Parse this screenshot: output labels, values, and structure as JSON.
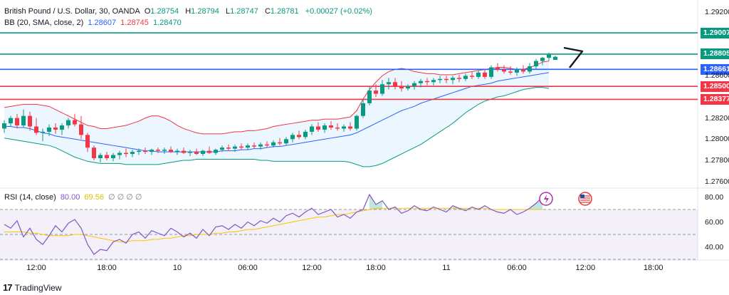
{
  "legend": {
    "symbol": "British Pound / U.S. Dollar, 30, OANDA",
    "o_label": "O",
    "o": "1.28754",
    "h_label": "H",
    "h": "1.28794",
    "l_label": "L",
    "l": "1.28747",
    "c_label": "C",
    "c": "1.28781",
    "change": "+0.00027 (+0.02%)",
    "bb_label": "BB (20, SMA, close, 2)",
    "bb_basis": "1.28607",
    "bb_upper": "1.28745",
    "bb_lower": "1.28470",
    "rsi_label": "RSI (14, close)",
    "rsi_value": "80.00",
    "rsi_ma": "69.56",
    "rsi_empty": "∅ ∅ ∅ ∅"
  },
  "price_labels": [
    "1.29007",
    "1.28805",
    "1.28661",
    "1.28500",
    "1.28377"
  ],
  "price_label_colors": [
    "#089981",
    "#089981",
    "#2962ff",
    "#f23645",
    "#f23645"
  ],
  "price_axis": [
    "1.29200",
    "1.28600",
    "1.28200",
    "1.28000",
    "1.27800",
    "1.27600"
  ],
  "rsi_axis": [
    "80.00",
    "60.00",
    "40.00"
  ],
  "time_axis": [
    "12:00",
    "18:00",
    "10",
    "06:00",
    "12:00",
    "18:00",
    "11",
    "06:00",
    "12:00",
    "18:00"
  ],
  "brand": {
    "name": "TradingView",
    "logo": "17"
  },
  "colors": {
    "up": "#089981",
    "down": "#f23645",
    "basis": "#2962ff",
    "band": "#f23645",
    "lower": "#089981",
    "rsi": "#7e57c2",
    "rsi_ma": "#f7c600"
  },
  "chart_data": [
    {
      "type": "candlestick",
      "title": "British Pound / U.S. Dollar, 30, OANDA",
      "ylim": [
        1.2755,
        1.2925
      ],
      "horizontal_lines": [
        {
          "value": 1.29007,
          "color": "#089981"
        },
        {
          "value": 1.28805,
          "color": "#089981"
        },
        {
          "value": 1.28661,
          "color": "#2962ff"
        },
        {
          "value": 1.285,
          "color": "#f23645"
        },
        {
          "value": 1.28377,
          "color": "#f23645"
        }
      ],
      "ohlc": [
        [
          1.281,
          1.2818,
          1.2806,
          1.2815
        ],
        [
          1.2815,
          1.2822,
          1.2812,
          1.282
        ],
        [
          1.282,
          1.2824,
          1.281,
          1.2813
        ],
        [
          1.2813,
          1.2828,
          1.2811,
          1.2822
        ],
        [
          1.2822,
          1.2826,
          1.2808,
          1.2812
        ],
        [
          1.2812,
          1.282,
          1.2804,
          1.2806
        ],
        [
          1.2806,
          1.281,
          1.2798,
          1.2807
        ],
        [
          1.2807,
          1.2814,
          1.2803,
          1.2811
        ],
        [
          1.2811,
          1.2815,
          1.2805,
          1.2809
        ],
        [
          1.2809,
          1.2815,
          1.2804,
          1.2813
        ],
        [
          1.2813,
          1.282,
          1.281,
          1.2818
        ],
        [
          1.2818,
          1.2824,
          1.2812,
          1.2814
        ],
        [
          1.2814,
          1.2822,
          1.28,
          1.2804
        ],
        [
          1.2804,
          1.2806,
          1.2788,
          1.2792
        ],
        [
          1.2792,
          1.2794,
          1.278,
          1.2782
        ],
        [
          1.2782,
          1.2787,
          1.2778,
          1.2785
        ],
        [
          1.2785,
          1.2788,
          1.278,
          1.2782
        ],
        [
          1.2782,
          1.2787,
          1.2779,
          1.2785
        ],
        [
          1.2785,
          1.2789,
          1.2781,
          1.2787
        ],
        [
          1.2787,
          1.2791,
          1.2783,
          1.2786
        ],
        [
          1.2786,
          1.279,
          1.2783,
          1.2788
        ],
        [
          1.2788,
          1.2791,
          1.2785,
          1.2789
        ],
        [
          1.2789,
          1.2792,
          1.2786,
          1.2788
        ],
        [
          1.2788,
          1.2791,
          1.2785,
          1.279
        ],
        [
          1.279,
          1.2792,
          1.2787,
          1.2789
        ],
        [
          1.2789,
          1.2792,
          1.2786,
          1.279
        ],
        [
          1.279,
          1.2793,
          1.2787,
          1.2788
        ],
        [
          1.2788,
          1.2791,
          1.2785,
          1.2789
        ],
        [
          1.2789,
          1.2792,
          1.2786,
          1.2787
        ],
        [
          1.2787,
          1.279,
          1.2784,
          1.2788
        ],
        [
          1.2788,
          1.2791,
          1.2785,
          1.2786
        ],
        [
          1.2786,
          1.279,
          1.2784,
          1.2789
        ],
        [
          1.2789,
          1.2793,
          1.2786,
          1.2787
        ],
        [
          1.2787,
          1.2791,
          1.2785,
          1.279
        ],
        [
          1.279,
          1.2794,
          1.2788,
          1.2792
        ],
        [
          1.2792,
          1.2795,
          1.2789,
          1.2791
        ],
        [
          1.2791,
          1.2795,
          1.2788,
          1.2793
        ],
        [
          1.2793,
          1.2796,
          1.279,
          1.2792
        ],
        [
          1.2792,
          1.2796,
          1.279,
          1.2794
        ],
        [
          1.2794,
          1.2797,
          1.2791,
          1.2793
        ],
        [
          1.2793,
          1.2797,
          1.279,
          1.2795
        ],
        [
          1.2795,
          1.2798,
          1.2792,
          1.2794
        ],
        [
          1.2794,
          1.2799,
          1.2792,
          1.2797
        ],
        [
          1.2797,
          1.2801,
          1.2794,
          1.2796
        ],
        [
          1.2796,
          1.2802,
          1.2794,
          1.28
        ],
        [
          1.28,
          1.2806,
          1.2797,
          1.2804
        ],
        [
          1.2804,
          1.2808,
          1.28,
          1.2802
        ],
        [
          1.2802,
          1.2809,
          1.28,
          1.2807
        ],
        [
          1.2807,
          1.2814,
          1.2804,
          1.2812
        ],
        [
          1.2812,
          1.2816,
          1.2807,
          1.2809
        ],
        [
          1.2809,
          1.2815,
          1.2806,
          1.2813
        ],
        [
          1.2813,
          1.2817,
          1.2809,
          1.2811
        ],
        [
          1.2811,
          1.2815,
          1.2808,
          1.281
        ],
        [
          1.281,
          1.2814,
          1.2807,
          1.2812
        ],
        [
          1.2812,
          1.2816,
          1.2808,
          1.281
        ],
        [
          1.281,
          1.2823,
          1.2808,
          1.2822
        ],
        [
          1.2822,
          1.2838,
          1.282,
          1.2834
        ],
        [
          1.2834,
          1.285,
          1.2832,
          1.2846
        ],
        [
          1.2846,
          1.2852,
          1.284,
          1.2843
        ],
        [
          1.2843,
          1.2856,
          1.2841,
          1.2852
        ],
        [
          1.2852,
          1.2858,
          1.2847,
          1.2854
        ],
        [
          1.2854,
          1.2858,
          1.2847,
          1.285
        ],
        [
          1.285,
          1.2855,
          1.2845,
          1.2848
        ],
        [
          1.2848,
          1.2852,
          1.2846,
          1.285
        ],
        [
          1.285,
          1.2855,
          1.2847,
          1.2853
        ],
        [
          1.2853,
          1.2857,
          1.2849,
          1.2855
        ],
        [
          1.2855,
          1.2858,
          1.2851,
          1.2854
        ],
        [
          1.2854,
          1.2858,
          1.2851,
          1.2856
        ],
        [
          1.2856,
          1.286,
          1.2853,
          1.2857
        ],
        [
          1.2857,
          1.286,
          1.2853,
          1.2856
        ],
        [
          1.2856,
          1.286,
          1.2852,
          1.2858
        ],
        [
          1.2858,
          1.2861,
          1.2854,
          1.2857
        ],
        [
          1.2857,
          1.2862,
          1.2855,
          1.286
        ],
        [
          1.286,
          1.2864,
          1.2857,
          1.2859
        ],
        [
          1.2859,
          1.2865,
          1.2857,
          1.2863
        ],
        [
          1.2863,
          1.2866,
          1.2857,
          1.2859
        ],
        [
          1.2859,
          1.287,
          1.2857,
          1.2868
        ],
        [
          1.2868,
          1.2872,
          1.2864,
          1.2866
        ],
        [
          1.2866,
          1.287,
          1.2862,
          1.2864
        ],
        [
          1.2864,
          1.2869,
          1.2861,
          1.2863
        ],
        [
          1.2863,
          1.2868,
          1.286,
          1.2866
        ],
        [
          1.2866,
          1.287,
          1.2862,
          1.2864
        ],
        [
          1.2864,
          1.2872,
          1.2862,
          1.2869
        ],
        [
          1.2869,
          1.2876,
          1.2866,
          1.2874
        ],
        [
          1.2874,
          1.2878,
          1.287,
          1.2877
        ],
        [
          1.2877,
          1.2882,
          1.2874,
          1.288
        ],
        [
          1.2875,
          1.2879,
          1.2875,
          1.2878
        ]
      ],
      "bb_upper": [
        1.283,
        1.2831,
        1.2832,
        1.2833,
        1.2833,
        1.2833,
        1.2832,
        1.2831,
        1.2828,
        1.2825,
        1.2822,
        1.2819,
        1.2816,
        1.2813,
        1.2812,
        1.281,
        1.281,
        1.2811,
        1.2812,
        1.2813,
        1.2815,
        1.2817,
        1.282,
        1.2822,
        1.2822,
        1.282,
        1.2817,
        1.2813,
        1.281,
        1.2808,
        1.2806,
        1.2805,
        1.2805,
        1.2805,
        1.2805,
        1.2806,
        1.2807,
        1.2807,
        1.2808,
        1.2808,
        1.2809,
        1.281,
        1.2812,
        1.2813,
        1.2814,
        1.2815,
        1.2816,
        1.2817,
        1.2818,
        1.2818,
        1.2819,
        1.2819,
        1.2819,
        1.282,
        1.2821,
        1.2827,
        1.2838,
        1.2847,
        1.2854,
        1.286,
        1.2864,
        1.2866,
        1.2867,
        1.2866,
        1.2864,
        1.2863,
        1.2862,
        1.2862,
        1.2861,
        1.2861,
        1.2861,
        1.2862,
        1.2863,
        1.2864,
        1.2865,
        1.2866,
        1.2867,
        1.2868,
        1.2868,
        1.2867,
        1.2866,
        1.2866,
        1.2868,
        1.287,
        1.2873,
        1.2874
      ],
      "bb_basis": [
        1.2812,
        1.2812,
        1.2811,
        1.2811,
        1.281,
        1.2808,
        1.2806,
        1.2805,
        1.2803,
        1.2802,
        1.2801,
        1.28,
        1.2799,
        1.2798,
        1.2797,
        1.2796,
        1.2795,
        1.2794,
        1.2793,
        1.2792,
        1.2791,
        1.279,
        1.2789,
        1.2789,
        1.2788,
        1.2788,
        1.2788,
        1.2788,
        1.2788,
        1.2788,
        1.2788,
        1.2788,
        1.2788,
        1.2788,
        1.2789,
        1.2789,
        1.2789,
        1.279,
        1.279,
        1.2791,
        1.2791,
        1.2792,
        1.2793,
        1.2793,
        1.2794,
        1.2795,
        1.2796,
        1.2797,
        1.2798,
        1.2799,
        1.28,
        1.2801,
        1.2802,
        1.2803,
        1.2804,
        1.2806,
        1.2809,
        1.2812,
        1.2815,
        1.2818,
        1.2821,
        1.2824,
        1.2827,
        1.2829,
        1.2831,
        1.2834,
        1.2836,
        1.2838,
        1.284,
        1.2842,
        1.2844,
        1.2846,
        1.2848,
        1.285,
        1.2851,
        1.2852,
        1.2853,
        1.2855,
        1.2856,
        1.2857,
        1.2858,
        1.2859,
        1.286,
        1.2861,
        1.2862,
        1.2863
      ],
      "bb_lower": [
        1.2801,
        1.28,
        1.2799,
        1.2798,
        1.2797,
        1.2796,
        1.2795,
        1.2794,
        1.2792,
        1.2789,
        1.2786,
        1.2783,
        1.2781,
        1.2779,
        1.2778,
        1.2777,
        1.2777,
        1.2777,
        1.2777,
        1.2776,
        1.2776,
        1.2776,
        1.2776,
        1.2776,
        1.2776,
        1.2777,
        1.2778,
        1.2779,
        1.278,
        1.278,
        1.2781,
        1.2781,
        1.2781,
        1.2781,
        1.2781,
        1.2781,
        1.2781,
        1.2781,
        1.2781,
        1.2781,
        1.278,
        1.278,
        1.2779,
        1.2779,
        1.2779,
        1.2779,
        1.2779,
        1.2779,
        1.2779,
        1.2779,
        1.2779,
        1.2779,
        1.2779,
        1.2779,
        1.2778,
        1.2776,
        1.2774,
        1.2774,
        1.2775,
        1.2777,
        1.278,
        1.2783,
        1.2786,
        1.2789,
        1.2792,
        1.2795,
        1.2799,
        1.2803,
        1.2807,
        1.2811,
        1.2815,
        1.282,
        1.2825,
        1.2829,
        1.2833,
        1.2836,
        1.2838,
        1.284,
        1.2841,
        1.2843,
        1.2845,
        1.2847,
        1.2848,
        1.2849,
        1.2849,
        1.2848
      ]
    },
    {
      "type": "line",
      "title": "RSI (14, close)",
      "ylim": [
        30,
        86
      ],
      "overbought": 70,
      "middle": 50,
      "oversold": 30,
      "series": [
        {
          "name": "RSI",
          "values": [
            58,
            55,
            61,
            48,
            55,
            46,
            42,
            49,
            57,
            52,
            59,
            62,
            55,
            42,
            34,
            38,
            37,
            44,
            46,
            43,
            50,
            52,
            47,
            53,
            51,
            49,
            55,
            52,
            48,
            51,
            47,
            54,
            49,
            56,
            57,
            54,
            58,
            55,
            60,
            57,
            61,
            59,
            63,
            60,
            65,
            67,
            64,
            68,
            71,
            66,
            68,
            70,
            64,
            66,
            63,
            68,
            70,
            82,
            74,
            77,
            70,
            72,
            67,
            69,
            73,
            70,
            69,
            72,
            70,
            68,
            73,
            71,
            69,
            72,
            70,
            73,
            70,
            68,
            67,
            70,
            66,
            68,
            71,
            75,
            80
          ]
        },
        {
          "name": "RSI MA",
          "values": [
            52,
            52,
            52,
            52,
            51,
            51,
            50,
            49,
            49,
            49,
            49,
            50,
            50,
            49,
            48,
            47,
            46,
            45,
            44,
            44,
            45,
            45,
            45,
            46,
            46,
            47,
            47,
            48,
            49,
            49,
            50,
            50,
            50,
            51,
            51,
            52,
            52,
            53,
            54,
            54,
            55,
            56,
            57,
            58,
            59,
            60,
            61,
            62,
            63,
            64,
            64,
            65,
            66,
            66,
            67,
            68,
            69,
            70,
            71,
            71,
            71,
            71,
            71,
            71,
            71,
            71,
            71,
            71,
            71,
            71,
            71,
            71,
            71,
            71,
            71,
            71,
            70,
            70,
            70,
            70,
            70,
            70,
            70,
            70,
            70
          ]
        }
      ]
    }
  ]
}
